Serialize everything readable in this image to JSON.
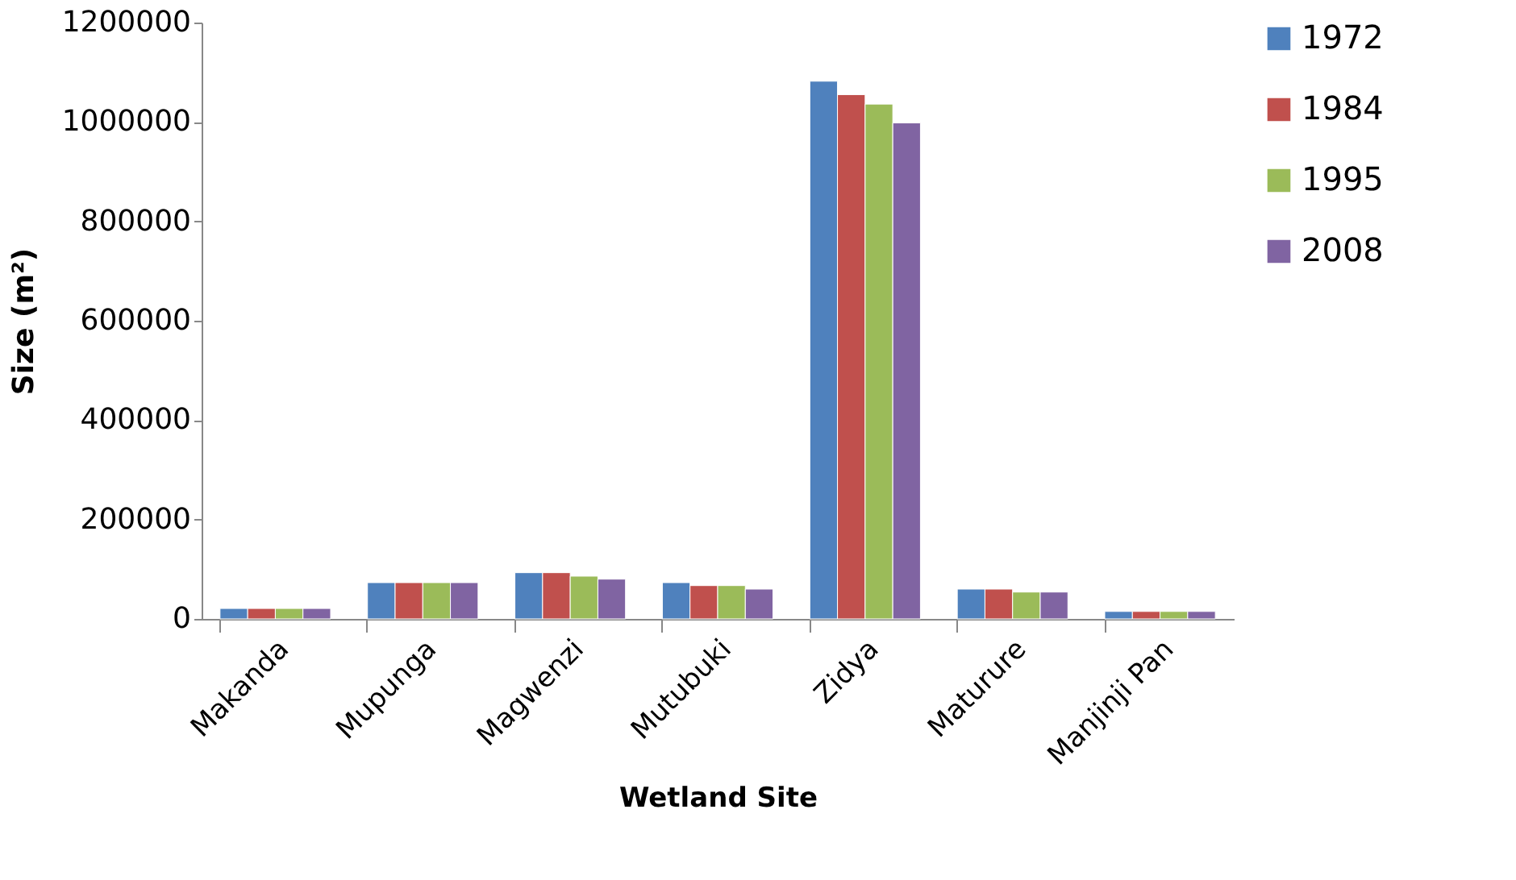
{
  "chart_data": {
    "type": "bar",
    "xlabel": "Wetland Site",
    "ylabel": "Size (m²)",
    "categories": [
      "Makanda",
      "Mupunga",
      "Magwenzi",
      "Mutubuki",
      "Zidya",
      "Maturure",
      "Manjinji Pan"
    ],
    "series": [
      {
        "name": "1972",
        "color": "#4f81bd",
        "values": [
          21000,
          73000,
          93000,
          73000,
          1082000,
          60000,
          15000
        ]
      },
      {
        "name": "1984",
        "color": "#c0504d",
        "values": [
          21000,
          73000,
          93000,
          67000,
          1055000,
          60000,
          15000
        ]
      },
      {
        "name": "1995",
        "color": "#9bbb59",
        "values": [
          21000,
          73000,
          86000,
          67000,
          1036000,
          54000,
          15000
        ]
      },
      {
        "name": "2008",
        "color": "#8064a2",
        "values": [
          21000,
          73000,
          80000,
          60000,
          998000,
          54000,
          15000
        ]
      }
    ],
    "ylim": [
      0,
      1200000
    ],
    "yticks": [
      0,
      200000,
      400000,
      600000,
      800000,
      1000000,
      1200000
    ],
    "grid": false,
    "legend": "right"
  }
}
